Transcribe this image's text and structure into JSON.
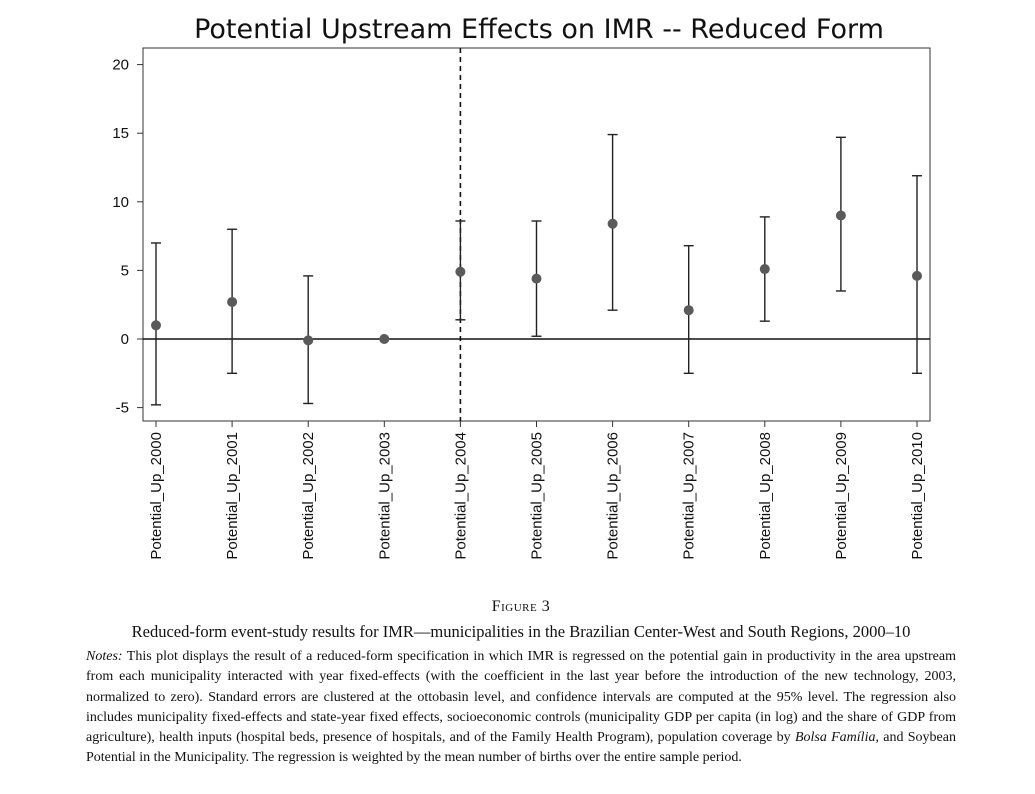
{
  "chart_data": {
    "type": "scatter",
    "title": "Potential Upstream Effects on IMR -- Reduced Form",
    "categories": [
      "Potential_Up_2000",
      "Potential_Up_2001",
      "Potential_Up_2002",
      "Potential_Up_2003",
      "Potential_Up_2004",
      "Potential_Up_2005",
      "Potential_Up_2006",
      "Potential_Up_2007",
      "Potential_Up_2008",
      "Potential_Up_2009",
      "Potential_Up_2010"
    ],
    "estimates": [
      1.0,
      2.7,
      -0.1,
      0.0,
      4.9,
      4.4,
      8.4,
      2.1,
      5.1,
      9.0,
      4.6
    ],
    "ci_lower": [
      -4.8,
      -2.5,
      -4.7,
      0.0,
      1.4,
      0.2,
      2.1,
      -2.5,
      1.3,
      3.5,
      -2.5
    ],
    "ci_upper": [
      7.0,
      8.0,
      4.6,
      0.0,
      8.6,
      8.6,
      14.9,
      6.8,
      8.9,
      14.7,
      11.9
    ],
    "yticks": [
      -5,
      0,
      5,
      10,
      15,
      20
    ],
    "ylim": [
      -6,
      21
    ],
    "reference_line_y": 0,
    "vertical_dashed_at": "Potential_Up_2004",
    "xlabel": "",
    "ylabel": "",
    "grid": false,
    "colors": {
      "marker": "#5a5a5a",
      "line": "#222222"
    }
  },
  "figure": {
    "label": "Figure 3",
    "caption": "Reduced-form event-study results for IMR—municipalities in the Brazilian Center-West and South Regions, 2000–10",
    "notes_label": "Notes:",
    "notes_part1": " This plot displays the result of a reduced-form specification in which IMR is regressed on the potential gain in productivity in the area upstream from each municipality interacted with year fixed-effects (with the coefficient in the last year before the introduction of the new technology, 2003, normalized to zero). Standard errors are clustered at the ottobasin level, and confidence intervals are computed at the 95% level. The regression also includes municipality fixed-effects and state-year fixed effects, socioeconomic controls (municipality GDP per capita (in log) and the share of GDP from agriculture), health inputs (hospital beds, presence of hospitals, and of the Family Health Program), population coverage by ",
    "notes_italic": "Bolsa Família",
    "notes_part2": ", and Soybean Potential in the Municipality. The regression is weighted by the mean number of births over the entire sample period."
  }
}
